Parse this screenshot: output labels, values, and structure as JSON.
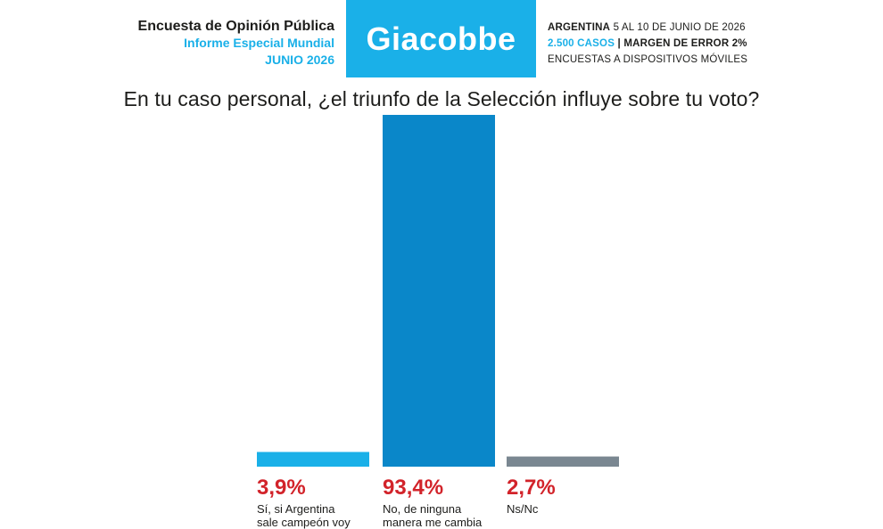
{
  "header": {
    "line1": "Encuesta de Opinión Pública",
    "line2": "Informe Especial Mundial",
    "line3": "JUNIO 2026",
    "brand": "Giacobbe",
    "country": "ARGENTINA",
    "dates": "5 AL 10 DE JUNIO DE 2026",
    "cases": "2.500 CASOS",
    "separator": "|",
    "margin": "MARGEN DE ERROR 2%",
    "method": "ENCUESTAS A DISPOSITIVOS MÓVILES"
  },
  "chart_data": {
    "type": "bar",
    "title": "En tu caso personal, ¿el triunfo de la Selección influye sobre tu voto?",
    "categories": [
      "Sí, si Argentina sale campeón voy",
      "No, de ninguna manera me cambia",
      "Ns/Nc"
    ],
    "category_lines": [
      [
        "Sí, si Argentina",
        "sale campeón voy"
      ],
      [
        "No, de ninguna",
        "manera me cambia"
      ],
      [
        "Ns/Nc"
      ]
    ],
    "values": [
      3.9,
      93.4,
      2.7
    ],
    "value_labels": [
      "3,9%",
      "93,4%",
      "2,7%"
    ],
    "colors": [
      "#1ab0e8",
      "#0a87c9",
      "#7a8791"
    ],
    "label_color": "#d2232a",
    "ylim": [
      0,
      93.4
    ],
    "grid": false,
    "legend": "none"
  }
}
